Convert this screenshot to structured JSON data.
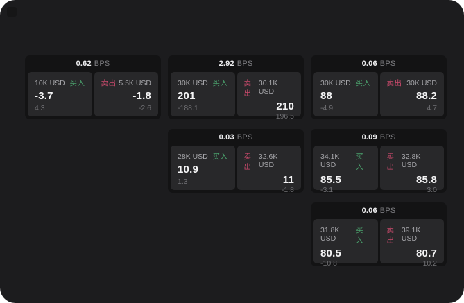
{
  "labels": {
    "buy": "买入",
    "sell": "卖出",
    "bps_suffix": "BPS"
  },
  "colors": {
    "screen_bg": "#1c1c1e",
    "card_bg": "#131314",
    "panel_bg": "#28282a",
    "buy": "#4aa06c",
    "sell": "#cb4a6c"
  },
  "cards": [
    {
      "spread": "0.62",
      "buy": {
        "amount": "10K USD",
        "price": "-3.7",
        "ref": "4.3"
      },
      "sell": {
        "amount": "5.5K USD",
        "price": "-1.8",
        "ref": "-2.6"
      }
    },
    {
      "spread": "2.92",
      "buy": {
        "amount": "30K USD",
        "price": "201",
        "ref": "-188.1"
      },
      "sell": {
        "amount": "30.1K USD",
        "price": "210",
        "ref": "196.5"
      }
    },
    {
      "spread": "0.06",
      "buy": {
        "amount": "30K USD",
        "price": "88",
        "ref": "-4.9"
      },
      "sell": {
        "amount": "30K USD",
        "price": "88.2",
        "ref": "4.7"
      }
    },
    {
      "spread": "0.03",
      "buy": {
        "amount": "28K USD",
        "price": "10.9",
        "ref": "1.3"
      },
      "sell": {
        "amount": "32.6K USD",
        "price": "11",
        "ref": "-1.8"
      }
    },
    {
      "spread": "0.09",
      "buy": {
        "amount": "34.1K USD",
        "price": "85.5",
        "ref": "-3.1"
      },
      "sell": {
        "amount": "32.8K USD",
        "price": "85.8",
        "ref": "3.0"
      }
    },
    {
      "spread": "0.06",
      "buy": {
        "amount": "31.8K USD",
        "price": "80.5",
        "ref": "-10.8"
      },
      "sell": {
        "amount": "39.1K USD",
        "price": "80.7",
        "ref": "10.2"
      }
    }
  ]
}
